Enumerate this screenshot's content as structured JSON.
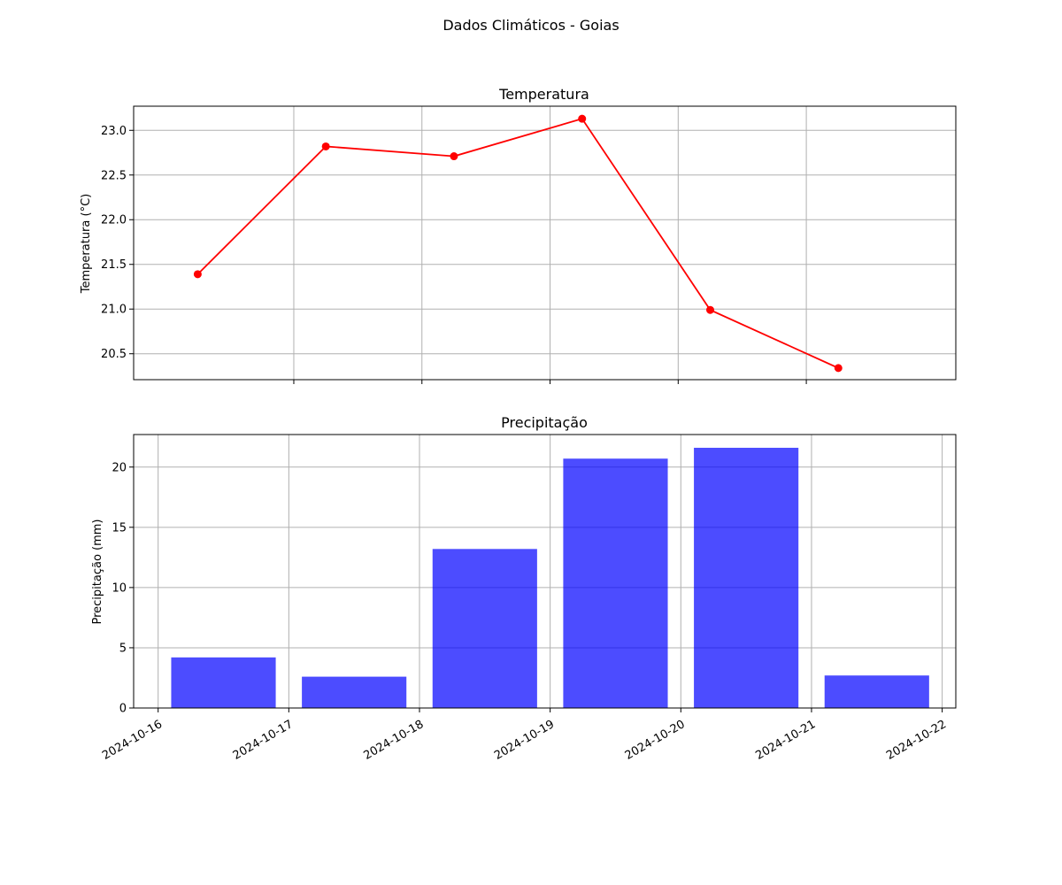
{
  "figure": {
    "suptitle": "Dados Climáticos - Goias"
  },
  "chart_data": [
    {
      "type": "line",
      "title": "Temperatura",
      "xlabel": "",
      "ylabel": "Temperatura (°C)",
      "color": "#ff0000",
      "marker": "circle",
      "x": [
        "2024-10-16 06:00",
        "2024-10-17 06:00",
        "2024-10-18 06:00",
        "2024-10-19 06:00",
        "2024-10-20 06:00",
        "2024-10-21 06:00"
      ],
      "values": [
        21.39,
        22.82,
        22.71,
        23.13,
        20.99,
        20.34
      ],
      "xlim": [
        "2024-10-15 18:00",
        "2024-10-22 04:00"
      ],
      "ylim": [
        20.21,
        23.27
      ],
      "yticks": [
        20.5,
        21.0,
        21.5,
        22.0,
        22.5,
        23.0
      ],
      "ytick_labels": [
        "20.5",
        "21.0",
        "21.5",
        "22.0",
        "22.5",
        "23.0"
      ],
      "xticks": [
        "2024-10-17",
        "2024-10-18",
        "2024-10-19",
        "2024-10-20",
        "2024-10-21"
      ],
      "show_x_tick_labels": false,
      "grid": true
    },
    {
      "type": "bar",
      "title": "Precipitação",
      "xlabel": "",
      "ylabel": "Precipitação (mm)",
      "color": "#0000ff",
      "opacity": 0.7,
      "x": [
        "2024-10-16 12:00",
        "2024-10-17 12:00",
        "2024-10-18 12:00",
        "2024-10-19 12:00",
        "2024-10-20 12:00",
        "2024-10-21 12:00"
      ],
      "values": [
        4.2,
        2.6,
        13.2,
        20.7,
        21.6,
        2.7
      ],
      "bar_width_days": 0.8,
      "xlim": [
        "2024-10-15 19:30",
        "2024-10-22 02:30"
      ],
      "ylim": [
        0,
        22.7
      ],
      "yticks": [
        0,
        5,
        10,
        15,
        20
      ],
      "ytick_labels": [
        "0",
        "5",
        "10",
        "15",
        "20"
      ],
      "xticks": [
        "2024-10-16",
        "2024-10-17",
        "2024-10-18",
        "2024-10-19",
        "2024-10-20",
        "2024-10-21",
        "2024-10-22"
      ],
      "xtick_labels": [
        "2024-10-16",
        "2024-10-17",
        "2024-10-18",
        "2024-10-19",
        "2024-10-20",
        "2024-10-21",
        "2024-10-22"
      ],
      "grid": true
    }
  ]
}
